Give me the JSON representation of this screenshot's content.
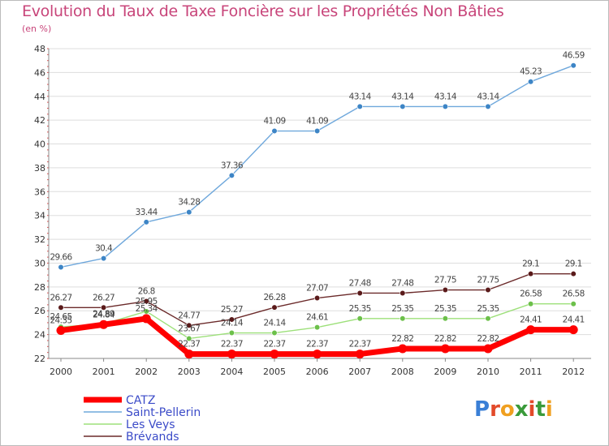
{
  "header": {
    "title": "Evolution du Taux de Taxe Foncière sur les Propriétés Non Bâties",
    "subtitle": "(en %)"
  },
  "logo": {
    "letters": [
      "P",
      "r",
      "o",
      "x",
      "i",
      "t",
      "i"
    ],
    "colors": [
      "#3a7fd6",
      "#e24a2a",
      "#f0a020",
      "#3a9a3a",
      "#e24a2a",
      "#3a9a3a",
      "#f0a020"
    ]
  },
  "chart_data": {
    "type": "line",
    "title": "Evolution du Taux de Taxe Foncière sur les Propriétés Non Bâties",
    "ylabel": "(en %)",
    "x": [
      "2000",
      "2001",
      "2002",
      "2003",
      "2004",
      "2005",
      "2006",
      "2007",
      "2008",
      "2009",
      "2010",
      "2011",
      "2012"
    ],
    "ylim": [
      22,
      48
    ],
    "yticks": [
      22,
      24,
      26,
      28,
      30,
      32,
      34,
      36,
      38,
      40,
      42,
      44,
      46,
      48
    ],
    "grid": "horizontal",
    "legend_position": "bottom-left",
    "series": [
      {
        "name": "Saint-Pellerin",
        "color": "#6fa8dc",
        "marker": "#3d85c6",
        "values": [
          29.66,
          30.4,
          33.44,
          34.28,
          37.36,
          41.09,
          41.09,
          43.14,
          43.14,
          43.14,
          43.14,
          45.23,
          46.59
        ],
        "labels": [
          "29.66",
          "30.4",
          "33.44",
          "34.28",
          "37.36",
          "41.09",
          "41.09",
          "43.14",
          "43.14",
          "43.14",
          "43.14",
          "45.23",
          "46.59"
        ]
      },
      {
        "name": "Brévands",
        "color": "#6b2a2a",
        "marker": "#5a1a1a",
        "values": [
          26.27,
          26.27,
          26.8,
          24.77,
          25.27,
          26.28,
          27.07,
          27.48,
          27.48,
          27.75,
          27.75,
          29.1,
          29.1
        ],
        "labels": [
          "26.27",
          "26.27",
          "26.8",
          "24.77",
          "25.27",
          "26.28",
          "27.07",
          "27.48",
          "27.48",
          "27.75",
          "27.75",
          "29.1",
          "29.1"
        ]
      },
      {
        "name": "Les Veys",
        "color": "#9de07a",
        "marker": "#6cc04a",
        "values": [
          24.65,
          24.89,
          25.95,
          23.67,
          24.14,
          24.14,
          24.61,
          25.35,
          25.35,
          25.35,
          25.35,
          26.58,
          26.58
        ],
        "labels": [
          "24.65",
          "24.89",
          "25.95",
          "23.67",
          "24.14",
          "24.14",
          "24.61",
          "25.35",
          "25.35",
          "25.35",
          "25.35",
          "26.58",
          "26.58"
        ]
      },
      {
        "name": "CATZ",
        "color": "#ff0000",
        "marker": "#ff0000",
        "values": [
          24.35,
          24.84,
          25.34,
          22.37,
          22.37,
          22.37,
          22.37,
          22.37,
          22.82,
          22.82,
          22.82,
          24.41,
          24.41
        ],
        "labels": [
          "24.35",
          "24.84",
          "25.34",
          "22.37",
          "22.37",
          "22.37",
          "22.37",
          "22.37",
          "22.82",
          "22.82",
          "22.82",
          "24.41",
          "24.41"
        ]
      }
    ],
    "legend": [
      {
        "name": "CATZ",
        "color": "#ff0000",
        "thick": true
      },
      {
        "name": "Saint-Pellerin",
        "color": "#6fa8dc",
        "thick": false
      },
      {
        "name": "Les Veys",
        "color": "#9de07a",
        "thick": false
      },
      {
        "name": "Brévands",
        "color": "#6b2a2a",
        "thick": false
      }
    ]
  }
}
